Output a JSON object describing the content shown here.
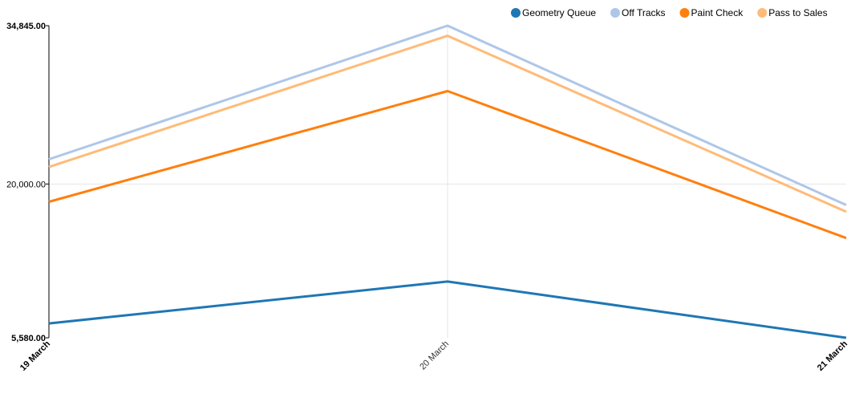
{
  "chart_data": {
    "type": "line",
    "title": "",
    "xlabel": "",
    "ylabel": "",
    "categories": [
      "19 March",
      "20 March",
      "21 March"
    ],
    "y_ticks": [
      "34,845.00",
      "20,000.00",
      "5,580.00"
    ],
    "ylim": [
      5580,
      34845
    ],
    "grid": true,
    "legend_position": "top-right",
    "series": [
      {
        "name": "Geometry Queue",
        "color": "#1f77b4",
        "values": [
          6930,
          10850,
          5580
        ]
      },
      {
        "name": "Off Tracks",
        "color": "#aec7e8",
        "values": [
          22320,
          34845,
          18030
        ]
      },
      {
        "name": "Paint Check",
        "color": "#ff7f0e",
        "values": [
          18330,
          28710,
          14930
        ]
      },
      {
        "name": "Pass to Sales",
        "color": "#ffbb78",
        "values": [
          21600,
          33900,
          17400
        ]
      }
    ]
  }
}
